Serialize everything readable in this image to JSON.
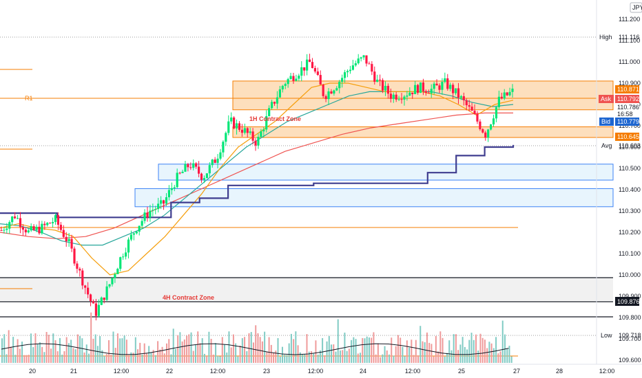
{
  "chart_data": {
    "type": "candlestick",
    "currency": "JPY",
    "ylim": [
      109.55,
      111.3
    ],
    "y_ticks": [
      "111.200",
      "111.100",
      "111.000",
      "110.900",
      "110.800",
      "110.700",
      "110.600",
      "110.500",
      "110.400",
      "110.300",
      "110.200",
      "110.100",
      "110.000",
      "109.900",
      "109.800",
      "109.700",
      "109.600"
    ],
    "x_ticks": [
      "20",
      "21",
      "12:00",
      "22",
      "12:00",
      "23",
      "12:00",
      "24",
      "12:00",
      "25",
      "12:00",
      "27",
      "28",
      "12:00"
    ],
    "price_labels": {
      "high": {
        "label": "High",
        "value": "111.116"
      },
      "ask": {
        "label": "Ask",
        "value": "110.792"
      },
      "last": {
        "value": "110.786"
      },
      "timer": {
        "value": "16:58"
      },
      "bid": {
        "label": "Bid",
        "value": "110.779"
      },
      "avg": {
        "label": "Avg",
        "value": "110.603"
      },
      "low": {
        "label": "Low",
        "value": "109.718"
      },
      "zone_top": {
        "value": "110.871"
      },
      "zone_bottom": {
        "value": "110.645"
      },
      "black_line": {
        "value": "109.876"
      },
      "hidden_a": {
        "value": "110.766"
      },
      "hidden_b": {
        "value": "109.900"
      }
    },
    "annotations": {
      "r1": "R1",
      "h1_zone": "1H Contract Zone",
      "h4_zone": "4H Contract Zone"
    },
    "zones": [
      {
        "kind": "orange",
        "from": 110.775,
        "to": 110.91
      },
      {
        "kind": "orange",
        "from": 110.645,
        "to": 110.695
      },
      {
        "kind": "blue",
        "from": 110.445,
        "to": 110.52
      },
      {
        "kind": "blue",
        "from": 110.32,
        "to": 110.405
      },
      {
        "kind": "gray",
        "from": 109.88,
        "to": 109.985
      }
    ],
    "candles_path": [
      110.21,
      110.28,
      110.2,
      110.22,
      110.26,
      110.15,
      109.98,
      109.82,
      109.95,
      110.1,
      110.22,
      110.3,
      110.33,
      110.45,
      110.52,
      110.46,
      110.55,
      110.72,
      110.68,
      110.62,
      110.78,
      110.9,
      110.95,
      111.0,
      110.84,
      110.9,
      110.98,
      111.02,
      110.9,
      110.84,
      110.85,
      110.88,
      110.87,
      110.9,
      110.84,
      110.76,
      110.66,
      110.82,
      110.86
    ],
    "ema_fast": [
      110.22,
      110.24,
      110.22,
      110.21,
      110.18,
      110.08,
      110.0,
      110.02,
      110.1,
      110.18,
      110.28,
      110.38,
      110.5,
      110.6,
      110.66,
      110.72,
      110.8,
      110.88,
      110.9,
      110.9,
      110.88,
      110.86,
      110.86,
      110.86,
      110.84,
      110.8,
      110.75,
      110.8,
      110.82
    ],
    "ema_slow": [
      110.24,
      110.23,
      110.2,
      110.16,
      110.14,
      110.14,
      110.18,
      110.22,
      110.28,
      110.36,
      110.44,
      110.52,
      110.6,
      110.66,
      110.72,
      110.76,
      110.8,
      110.84,
      110.86,
      110.86,
      110.86,
      110.86,
      110.84,
      110.81,
      110.79,
      110.8
    ],
    "ema_long": [
      110.2,
      110.18,
      110.17,
      110.18,
      110.22,
      110.28,
      110.34,
      110.4,
      110.46,
      110.52,
      110.58,
      110.62,
      110.66,
      110.69,
      110.71,
      110.73,
      110.75,
      110.76,
      110.76
    ],
    "avg_line": [
      110.29,
      110.29,
      110.27,
      110.27,
      110.27,
      110.27,
      110.34,
      110.36,
      110.42,
      110.42,
      110.42,
      110.43,
      110.43,
      110.43,
      110.43,
      110.48,
      110.56,
      110.6,
      110.61
    ]
  },
  "colors": {
    "orange": "#f57c00",
    "orange_zone": "#fbc991",
    "blue_zone": "#d8eefb",
    "blue_border": "#3b82f6",
    "gray_zone": "#e7e7e7",
    "bull": "#00e676",
    "bear": "#ff1744",
    "ema_fast": "#f59e0b",
    "ema_slow": "#26a69a",
    "ema_long": "#ef5350",
    "avg_line": "#3f3d8f",
    "ask_tag": "#ef5350",
    "bid_tag": "#1e66d0",
    "black": "#131722"
  }
}
